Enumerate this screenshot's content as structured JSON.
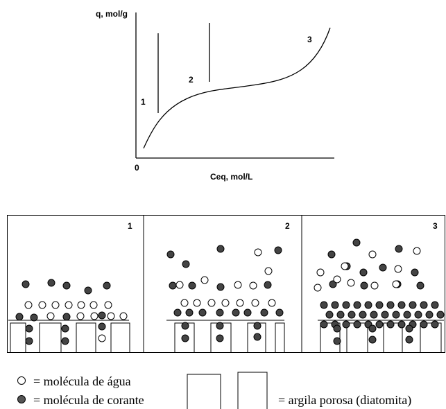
{
  "chart": {
    "y_axis_label": "q, mol/g",
    "origin_label": "0",
    "x_axis_label": "Ceq, mol/L",
    "region_labels": [
      "1",
      "2",
      "3"
    ]
  },
  "panels": [
    {
      "label": "1"
    },
    {
      "label": "2"
    },
    {
      "label": "3"
    }
  ],
  "legend": {
    "water": "= molécula de água",
    "dye": "= molécula de corante",
    "clay": "= argila porosa (diatomita)"
  }
}
